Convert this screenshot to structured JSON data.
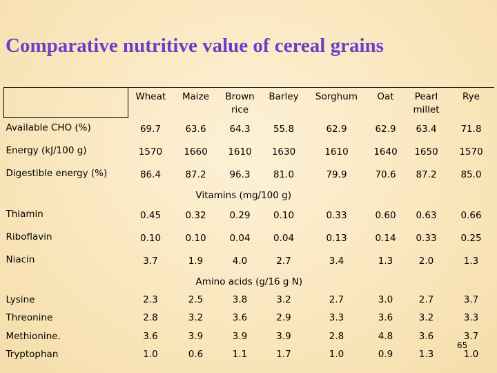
{
  "title": "Comparative nutritive value of cereal grains",
  "columns": [
    "Wheat",
    "Maize",
    "Brown rice",
    "Barley",
    "Sorghum",
    "Oat",
    "Pearl millet",
    "Rye"
  ],
  "group1": [
    {
      "label": "Available CHO (%)",
      "values": [
        "69.7",
        "63.6",
        "64.3",
        "55.8",
        "62.9",
        "62.9",
        "63.4",
        "71.8"
      ]
    },
    {
      "label": "Energy (kJ/100 g)",
      "values": [
        "1570",
        "1660",
        "1610",
        "1630",
        "1610",
        "1640",
        "1650",
        "1570"
      ]
    },
    {
      "label": "Digestible energy (%)",
      "values": [
        "86.4",
        "87.2",
        "96.3",
        "81.0",
        "79.9",
        "70.6",
        "87.2",
        "85.0"
      ]
    }
  ],
  "vitamins_heading": "Vitamins (mg/100 g)",
  "group2": [
    {
      "label": "Thiamin",
      "values": [
        "0.45",
        "0.32",
        "0.29",
        "0.10",
        "0.33",
        "0.60",
        "0.63",
        "0.66"
      ]
    },
    {
      "label": "Riboflavin",
      "values": [
        "0.10",
        "0.10",
        "0.04",
        "0.04",
        "0.13",
        "0.14",
        "0.33",
        "0.25"
      ]
    },
    {
      "label": "Niacin",
      "values": [
        "3.7",
        "1.9",
        "4.0",
        "2.7",
        "3.4",
        "1.3",
        "2.0",
        "1.3"
      ]
    }
  ],
  "amino_heading": "Amino acids (g/16 g N)",
  "group3": [
    {
      "label": "Lysine",
      "values": [
        "2.3",
        "2.5",
        "3.8",
        "3.2",
        "2.7",
        "3.0",
        "2.7",
        "3.7"
      ]
    },
    {
      "label": "Threonine",
      "values": [
        "2.8",
        "3.2",
        "3.6",
        "2.9",
        "3.3",
        "3.6",
        "3.2",
        "3.3"
      ]
    },
    {
      "label": "Methionine.",
      "values": [
        "3.6",
        "3.9",
        "3.9",
        "3.9",
        "2.8",
        "4.8",
        "3.6",
        "3.7"
      ]
    },
    {
      "label": "Tryptophan",
      "values": [
        "1.0",
        "0.6",
        "1.1",
        "1.7",
        "1.0",
        "0.9",
        "1.3",
        "1.0"
      ]
    }
  ],
  "page_number": "65"
}
